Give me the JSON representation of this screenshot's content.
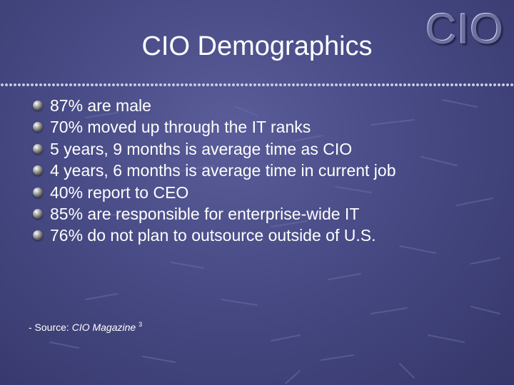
{
  "slide": {
    "title": "CIO Demographics",
    "logo": "CIO",
    "bullets": [
      "87% are male",
      "70% moved up through the IT ranks",
      "5 years, 9 months is average time as CIO",
      "4 years, 6 months is average time in current job",
      "40% report to CEO",
      "85% are responsible for enterprise-wide IT",
      "76% do not plan to outsource outside of U.S."
    ],
    "bullet_icon": "sphere-bullet-icon",
    "source": {
      "prefix": "- Source: ",
      "publication": "CIO Magazine",
      "footnote": "3"
    }
  },
  "colors": {
    "background": "#474a84",
    "text": "#ffffff",
    "logo": "#6d6f9e"
  }
}
